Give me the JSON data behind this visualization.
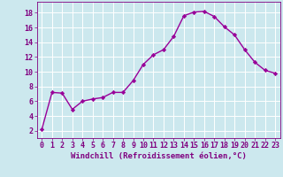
{
  "x": [
    0,
    1,
    2,
    3,
    4,
    5,
    6,
    7,
    8,
    9,
    10,
    11,
    12,
    13,
    14,
    15,
    16,
    17,
    18,
    19,
    20,
    21,
    22,
    23
  ],
  "y": [
    2.2,
    7.2,
    7.1,
    4.9,
    6.0,
    6.3,
    6.5,
    7.2,
    7.2,
    8.8,
    11.0,
    12.3,
    13.0,
    14.8,
    17.6,
    18.1,
    18.2,
    17.5,
    16.1,
    15.0,
    13.0,
    11.3,
    10.2,
    9.8
  ],
  "line_color": "#990099",
  "marker": "D",
  "marker_size": 2.2,
  "bg_color": "#cce8ee",
  "grid_color": "#ffffff",
  "xlabel": "Windchill (Refroidissement éolien,°C)",
  "yticks": [
    2,
    4,
    6,
    8,
    10,
    12,
    14,
    16,
    18
  ],
  "xlim": [
    -0.5,
    23.5
  ],
  "ylim": [
    1.0,
    19.5
  ],
  "xlabel_fontsize": 6.5,
  "tick_fontsize": 6.0,
  "axis_color": "#800080",
  "linewidth": 1.0
}
